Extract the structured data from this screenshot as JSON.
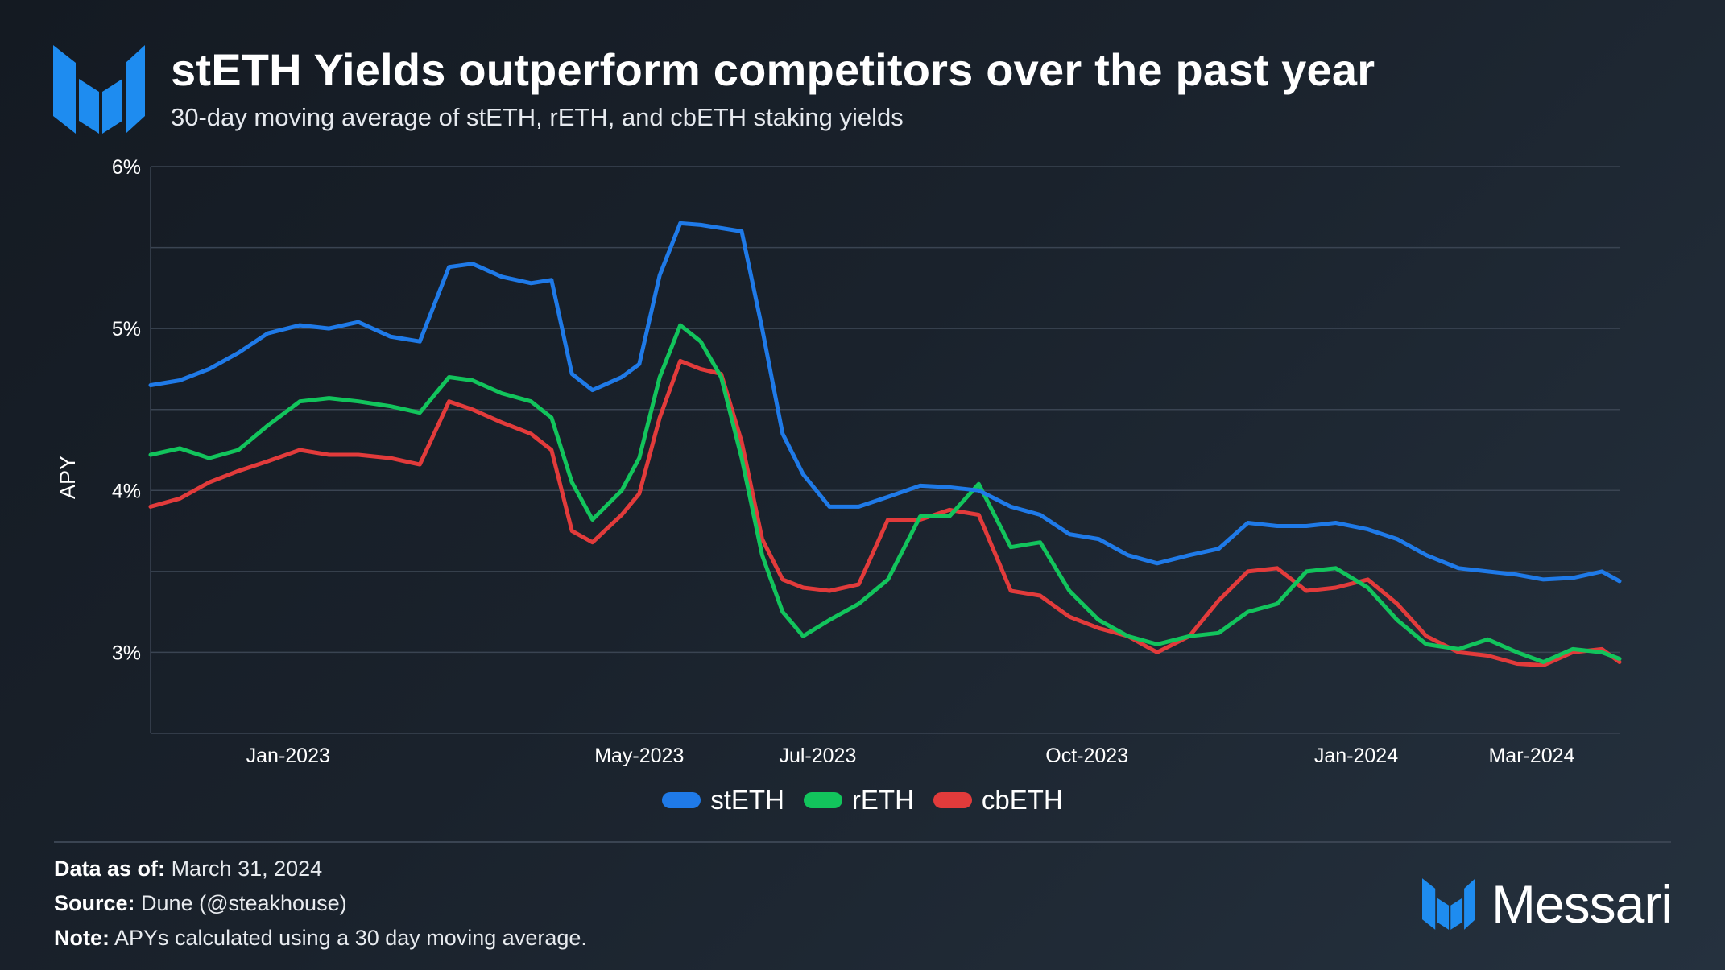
{
  "header": {
    "title": "stETH Yields outperform competitors over the past year",
    "subtitle": "30-day moving average of stETH, rETH, and cbETH staking yields",
    "logo_icon": "messari-logo-icon"
  },
  "footer": {
    "data_as_of_label": "Data as of:",
    "data_as_of_value": "March 31, 2024",
    "source_label": "Source:",
    "source_value": "Dune (@steakhouse)",
    "note_label": "Note:",
    "note_value": "APYs calculated using a 30 day moving average.",
    "brand_name": "Messari"
  },
  "colors": {
    "stETH": "#1f7ae8",
    "rETH": "#12c45c",
    "cbETH": "#e23b3b",
    "grid": "#3a4452",
    "axis_text": "#ffffff"
  },
  "chart_data": {
    "type": "line",
    "title": "stETH Yields outperform competitors over the past year",
    "subtitle": "30-day moving average of stETH, rETH, and cbETH staking yields",
    "xlabel": "",
    "ylabel": "APY",
    "xlim": [
      "2022-11-15",
      "2024-03-31"
    ],
    "ylim": [
      2.5,
      6.0
    ],
    "y_ticks": [
      3,
      4,
      5,
      6
    ],
    "y_tick_labels": [
      "3%",
      "4%",
      "5%",
      "6%"
    ],
    "x_ticks": [
      "2023-01-01",
      "2023-05-01",
      "2023-07-01",
      "2023-10-01",
      "2024-01-01",
      "2024-03-01"
    ],
    "x_tick_labels": [
      "Jan-2023",
      "May-2023",
      "Jul-2023",
      "Oct-2023",
      "Jan-2024",
      "Mar-2024"
    ],
    "grid": true,
    "legend_position": "bottom-center",
    "series": [
      {
        "name": "stETH",
        "color": "#1f7ae8",
        "x": [
          "2022-11-15",
          "2022-11-25",
          "2022-12-05",
          "2022-12-15",
          "2022-12-25",
          "2023-01-05",
          "2023-01-15",
          "2023-01-25",
          "2023-02-05",
          "2023-02-15",
          "2023-02-25",
          "2023-03-05",
          "2023-03-15",
          "2023-03-25",
          "2023-04-01",
          "2023-04-08",
          "2023-04-15",
          "2023-04-25",
          "2023-05-01",
          "2023-05-08",
          "2023-05-15",
          "2023-05-22",
          "2023-05-29",
          "2023-06-05",
          "2023-06-12",
          "2023-06-19",
          "2023-06-26",
          "2023-07-05",
          "2023-07-15",
          "2023-07-25",
          "2023-08-05",
          "2023-08-15",
          "2023-08-25",
          "2023-09-05",
          "2023-09-15",
          "2023-09-25",
          "2023-10-05",
          "2023-10-15",
          "2023-10-25",
          "2023-11-05",
          "2023-11-15",
          "2023-11-25",
          "2023-12-05",
          "2023-12-15",
          "2023-12-25",
          "2024-01-05",
          "2024-01-15",
          "2024-01-25",
          "2024-02-05",
          "2024-02-15",
          "2024-02-25",
          "2024-03-05",
          "2024-03-15",
          "2024-03-25",
          "2024-03-31"
        ],
        "values": [
          4.65,
          4.68,
          4.75,
          4.85,
          4.97,
          5.02,
          5.0,
          5.04,
          4.95,
          4.92,
          5.38,
          5.4,
          5.32,
          5.28,
          5.3,
          4.72,
          4.62,
          4.7,
          4.78,
          5.33,
          5.65,
          5.64,
          5.62,
          5.6,
          5.0,
          4.35,
          4.1,
          3.9,
          3.9,
          3.96,
          4.03,
          4.02,
          4.0,
          3.9,
          3.85,
          3.73,
          3.7,
          3.6,
          3.55,
          3.6,
          3.64,
          3.8,
          3.78,
          3.78,
          3.8,
          3.76,
          3.7,
          3.6,
          3.52,
          3.5,
          3.48,
          3.45,
          3.46,
          3.5,
          3.44
        ]
      },
      {
        "name": "rETH",
        "color": "#12c45c",
        "x": [
          "2022-11-15",
          "2022-11-25",
          "2022-12-05",
          "2022-12-15",
          "2022-12-25",
          "2023-01-05",
          "2023-01-15",
          "2023-01-25",
          "2023-02-05",
          "2023-02-15",
          "2023-02-25",
          "2023-03-05",
          "2023-03-15",
          "2023-03-25",
          "2023-04-01",
          "2023-04-08",
          "2023-04-15",
          "2023-04-25",
          "2023-05-01",
          "2023-05-08",
          "2023-05-15",
          "2023-05-22",
          "2023-05-29",
          "2023-06-05",
          "2023-06-12",
          "2023-06-19",
          "2023-06-26",
          "2023-07-05",
          "2023-07-15",
          "2023-07-25",
          "2023-08-05",
          "2023-08-15",
          "2023-08-25",
          "2023-09-05",
          "2023-09-15",
          "2023-09-25",
          "2023-10-05",
          "2023-10-15",
          "2023-10-25",
          "2023-11-05",
          "2023-11-15",
          "2023-11-25",
          "2023-12-05",
          "2023-12-15",
          "2023-12-25",
          "2024-01-05",
          "2024-01-15",
          "2024-01-25",
          "2024-02-05",
          "2024-02-15",
          "2024-02-25",
          "2024-03-05",
          "2024-03-15",
          "2024-03-25",
          "2024-03-31"
        ],
        "values": [
          4.22,
          4.26,
          4.2,
          4.25,
          4.4,
          4.55,
          4.57,
          4.55,
          4.52,
          4.48,
          4.7,
          4.68,
          4.6,
          4.55,
          4.45,
          4.05,
          3.82,
          4.0,
          4.2,
          4.7,
          5.02,
          4.92,
          4.7,
          4.2,
          3.6,
          3.25,
          3.1,
          3.2,
          3.3,
          3.45,
          3.84,
          3.84,
          4.04,
          3.65,
          3.68,
          3.38,
          3.2,
          3.1,
          3.05,
          3.1,
          3.12,
          3.25,
          3.3,
          3.5,
          3.52,
          3.4,
          3.2,
          3.05,
          3.02,
          3.08,
          3.0,
          2.94,
          3.02,
          3.0,
          2.96
        ]
      },
      {
        "name": "cbETH",
        "color": "#e23b3b",
        "x": [
          "2022-11-15",
          "2022-11-25",
          "2022-12-05",
          "2022-12-15",
          "2022-12-25",
          "2023-01-05",
          "2023-01-15",
          "2023-01-25",
          "2023-02-05",
          "2023-02-15",
          "2023-02-25",
          "2023-03-05",
          "2023-03-15",
          "2023-03-25",
          "2023-04-01",
          "2023-04-08",
          "2023-04-15",
          "2023-04-25",
          "2023-05-01",
          "2023-05-08",
          "2023-05-15",
          "2023-05-22",
          "2023-05-29",
          "2023-06-05",
          "2023-06-12",
          "2023-06-19",
          "2023-06-26",
          "2023-07-05",
          "2023-07-15",
          "2023-07-25",
          "2023-08-05",
          "2023-08-15",
          "2023-08-25",
          "2023-09-05",
          "2023-09-15",
          "2023-09-25",
          "2023-10-05",
          "2023-10-15",
          "2023-10-25",
          "2023-11-05",
          "2023-11-15",
          "2023-11-25",
          "2023-12-05",
          "2023-12-15",
          "2023-12-25",
          "2024-01-05",
          "2024-01-15",
          "2024-01-25",
          "2024-02-05",
          "2024-02-15",
          "2024-02-25",
          "2024-03-05",
          "2024-03-15",
          "2024-03-25",
          "2024-03-31"
        ],
        "values": [
          3.9,
          3.95,
          4.05,
          4.12,
          4.18,
          4.25,
          4.22,
          4.22,
          4.2,
          4.16,
          4.55,
          4.5,
          4.42,
          4.35,
          4.25,
          3.75,
          3.68,
          3.85,
          3.98,
          4.45,
          4.8,
          4.75,
          4.72,
          4.3,
          3.7,
          3.45,
          3.4,
          3.38,
          3.42,
          3.82,
          3.82,
          3.88,
          3.85,
          3.38,
          3.35,
          3.22,
          3.15,
          3.1,
          3.0,
          3.1,
          3.32,
          3.5,
          3.52,
          3.38,
          3.4,
          3.45,
          3.3,
          3.1,
          3.0,
          2.98,
          2.93,
          2.92,
          3.0,
          3.02,
          2.94
        ]
      }
    ]
  }
}
